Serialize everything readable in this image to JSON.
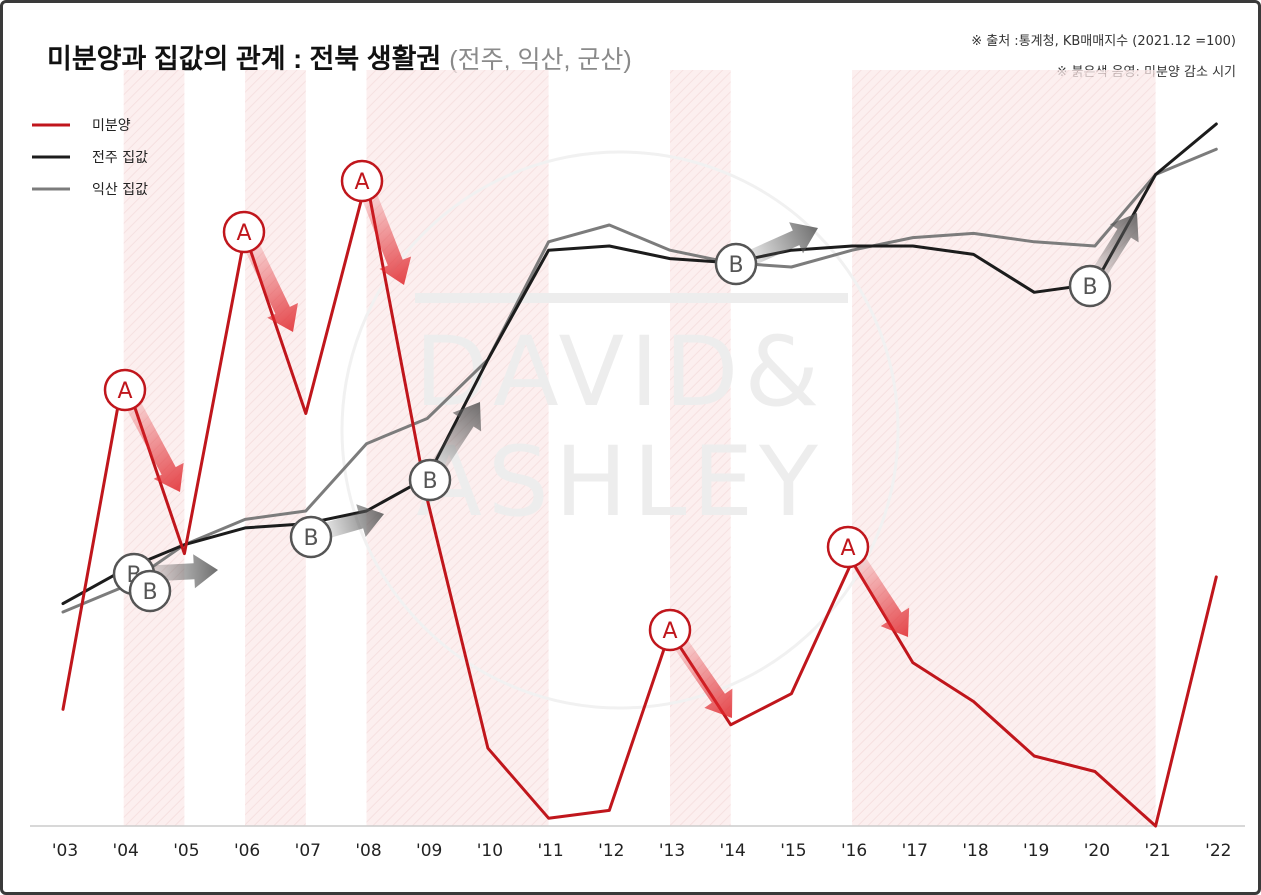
{
  "title": {
    "main": "미분양과 집값의 관계 : 전북 생활권",
    "sub": "(전주, 익산, 군산)"
  },
  "notes": {
    "source": "※ 출처 :통계청, KB매매지수 (2021.12 =100)",
    "shading": "※ 붉은색 음영: 미분양 감소 시기"
  },
  "watermark": {
    "line1": "DAVID&",
    "line2": "ASHLEY"
  },
  "colors": {
    "unsold": "#c0161c",
    "jeonju": "#1c1c1c",
    "iksan": "#7c7c7c",
    "shade": "#fbeaea"
  },
  "chart_data": {
    "type": "line",
    "x": [
      "'03",
      "'04",
      "'05",
      "'06",
      "'07",
      "'08",
      "'09",
      "'10",
      "'11",
      "'12",
      "'13",
      "'14",
      "'15",
      "'16",
      "'17",
      "'18",
      "'19",
      "'20",
      "'21",
      "'22"
    ],
    "series": [
      {
        "name": "미분양",
        "axis": "unsold",
        "values": [
          15,
          58,
          35,
          76,
          53,
          83,
          42,
          10,
          1,
          2,
          25,
          13,
          17,
          34,
          21,
          16,
          9,
          7,
          0,
          32
        ]
      },
      {
        "name": "전주 집값",
        "axis": "price",
        "values": [
          52,
          56,
          59,
          61,
          61.5,
          63,
          67,
          81,
          94,
          94.5,
          93,
          92.5,
          94,
          94.5,
          94.5,
          93.5,
          89,
          90,
          103,
          109
        ]
      },
      {
        "name": "익산 집값",
        "axis": "price",
        "values": [
          51,
          54,
          59,
          62,
          63,
          71,
          74,
          81,
          95,
          97,
          94,
          92.5,
          92,
          94,
          95.5,
          96,
          95,
          94.5,
          103,
          106
        ]
      }
    ],
    "shaded_periods": [
      [
        "'04",
        "'05"
      ],
      [
        "'06",
        "'07"
      ],
      [
        "'08",
        "'11"
      ],
      [
        "'13",
        "'14"
      ],
      [
        "'16",
        "'21"
      ]
    ],
    "annotations": [
      {
        "label": "A",
        "x": "'04"
      },
      {
        "label": "A",
        "x": "'06"
      },
      {
        "label": "A",
        "x": "'08"
      },
      {
        "label": "A",
        "x": "'13"
      },
      {
        "label": "A",
        "x": "'16"
      },
      {
        "label": "B",
        "x": "'04"
      },
      {
        "label": "B",
        "x": "'04"
      },
      {
        "label": "B",
        "x": "'07"
      },
      {
        "label": "B",
        "x": "'09"
      },
      {
        "label": "B",
        "x": "'14"
      },
      {
        "label": "B",
        "x": "'20"
      }
    ],
    "legend": "top-left",
    "grid": false
  }
}
